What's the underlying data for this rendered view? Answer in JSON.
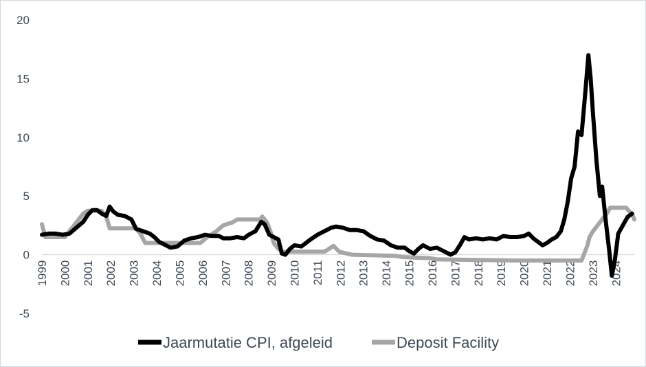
{
  "chart_data": {
    "type": "line",
    "title": "",
    "xlabel": "",
    "ylabel": "",
    "ylim": [
      -5,
      20
    ],
    "xlim": [
      1999.0,
      2024.8
    ],
    "y_ticks": [
      -5,
      0,
      5,
      10,
      15,
      20
    ],
    "x_ticks": [
      1999,
      2000,
      2001,
      2002,
      2003,
      2004,
      2005,
      2006,
      2007,
      2008,
      2009,
      2010,
      2011,
      2012,
      2013,
      2014,
      2015,
      2016,
      2017,
      2018,
      2019,
      2020,
      2021,
      2022,
      2023,
      2024
    ],
    "grid": false,
    "legend_position": "bottom",
    "series": [
      {
        "name": "Jaarmutatie CPI, afgeleid",
        "color": "#000000",
        "points": [
          [
            1999.0,
            1.7
          ],
          [
            1999.3,
            1.8
          ],
          [
            1999.6,
            1.8
          ],
          [
            1999.9,
            1.7
          ],
          [
            2000.2,
            1.8
          ],
          [
            2000.5,
            2.3
          ],
          [
            2000.8,
            2.8
          ],
          [
            2001.0,
            3.4
          ],
          [
            2001.2,
            3.8
          ],
          [
            2001.4,
            3.8
          ],
          [
            2001.6,
            3.5
          ],
          [
            2001.8,
            3.3
          ],
          [
            2001.95,
            4.1
          ],
          [
            2002.1,
            3.7
          ],
          [
            2002.3,
            3.4
          ],
          [
            2002.6,
            3.3
          ],
          [
            2002.9,
            3.0
          ],
          [
            2003.1,
            2.2
          ],
          [
            2003.4,
            2.0
          ],
          [
            2003.7,
            1.8
          ],
          [
            2003.9,
            1.5
          ],
          [
            2004.1,
            1.1
          ],
          [
            2004.3,
            0.9
          ],
          [
            2004.6,
            0.6
          ],
          [
            2004.9,
            0.7
          ],
          [
            2005.2,
            1.2
          ],
          [
            2005.5,
            1.4
          ],
          [
            2005.8,
            1.5
          ],
          [
            2006.1,
            1.7
          ],
          [
            2006.4,
            1.6
          ],
          [
            2006.7,
            1.6
          ],
          [
            2006.9,
            1.4
          ],
          [
            2007.2,
            1.4
          ],
          [
            2007.5,
            1.5
          ],
          [
            2007.8,
            1.4
          ],
          [
            2008.0,
            1.7
          ],
          [
            2008.3,
            2.0
          ],
          [
            2008.55,
            2.8
          ],
          [
            2008.7,
            2.6
          ],
          [
            2008.9,
            1.7
          ],
          [
            2009.1,
            1.5
          ],
          [
            2009.3,
            1.3
          ],
          [
            2009.45,
            0.1
          ],
          [
            2009.6,
            0.0
          ],
          [
            2009.8,
            0.5
          ],
          [
            2010.0,
            0.8
          ],
          [
            2010.3,
            0.7
          ],
          [
            2010.5,
            1.0
          ],
          [
            2010.7,
            1.3
          ],
          [
            2011.0,
            1.7
          ],
          [
            2011.3,
            2.0
          ],
          [
            2011.6,
            2.3
          ],
          [
            2011.8,
            2.4
          ],
          [
            2012.1,
            2.3
          ],
          [
            2012.4,
            2.1
          ],
          [
            2012.7,
            2.1
          ],
          [
            2013.0,
            2.0
          ],
          [
            2013.3,
            1.6
          ],
          [
            2013.6,
            1.3
          ],
          [
            2013.9,
            1.2
          ],
          [
            2014.2,
            0.8
          ],
          [
            2014.5,
            0.6
          ],
          [
            2014.8,
            0.6
          ],
          [
            2015.0,
            0.3
          ],
          [
            2015.2,
            0.1
          ],
          [
            2015.4,
            0.5
          ],
          [
            2015.6,
            0.8
          ],
          [
            2015.9,
            0.5
          ],
          [
            2016.2,
            0.6
          ],
          [
            2016.5,
            0.3
          ],
          [
            2016.8,
            0.0
          ],
          [
            2017.0,
            0.2
          ],
          [
            2017.2,
            0.8
          ],
          [
            2017.4,
            1.5
          ],
          [
            2017.6,
            1.3
          ],
          [
            2017.9,
            1.4
          ],
          [
            2018.2,
            1.3
          ],
          [
            2018.5,
            1.4
          ],
          [
            2018.8,
            1.3
          ],
          [
            2019.1,
            1.6
          ],
          [
            2019.4,
            1.5
          ],
          [
            2019.7,
            1.5
          ],
          [
            2020.0,
            1.6
          ],
          [
            2020.2,
            1.8
          ],
          [
            2020.4,
            1.4
          ],
          [
            2020.6,
            1.1
          ],
          [
            2020.8,
            0.8
          ],
          [
            2021.0,
            1.0
          ],
          [
            2021.2,
            1.3
          ],
          [
            2021.4,
            1.5
          ],
          [
            2021.6,
            2.0
          ],
          [
            2021.75,
            3.0
          ],
          [
            2021.9,
            4.5
          ],
          [
            2022.05,
            6.5
          ],
          [
            2022.2,
            7.5
          ],
          [
            2022.35,
            10.5
          ],
          [
            2022.5,
            10.2
          ],
          [
            2022.65,
            13.5
          ],
          [
            2022.8,
            17.0
          ],
          [
            2022.9,
            15.0
          ],
          [
            2023.0,
            12.0
          ],
          [
            2023.15,
            8.0
          ],
          [
            2023.3,
            5.0
          ],
          [
            2023.4,
            5.8
          ],
          [
            2023.55,
            3.0
          ],
          [
            2023.7,
            0.5
          ],
          [
            2023.82,
            -1.8
          ],
          [
            2023.95,
            -0.5
          ],
          [
            2024.1,
            1.8
          ],
          [
            2024.3,
            2.5
          ],
          [
            2024.5,
            3.2
          ],
          [
            2024.7,
            3.5
          ]
        ]
      },
      {
        "name": "Deposit Facility",
        "color": "#a6a6a6",
        "points": [
          [
            1999.0,
            2.6
          ],
          [
            1999.15,
            1.5
          ],
          [
            2000.0,
            1.5
          ],
          [
            2000.2,
            2.0
          ],
          [
            2000.4,
            2.5
          ],
          [
            2000.6,
            3.0
          ],
          [
            2000.8,
            3.5
          ],
          [
            2001.0,
            3.75
          ],
          [
            2001.6,
            3.75
          ],
          [
            2001.8,
            3.25
          ],
          [
            2001.95,
            2.25
          ],
          [
            2003.1,
            2.25
          ],
          [
            2003.3,
            1.75
          ],
          [
            2003.5,
            1.0
          ],
          [
            2005.9,
            1.0
          ],
          [
            2006.2,
            1.5
          ],
          [
            2006.6,
            2.0
          ],
          [
            2006.9,
            2.5
          ],
          [
            2007.3,
            2.75
          ],
          [
            2007.5,
            3.0
          ],
          [
            2008.5,
            3.0
          ],
          [
            2008.6,
            3.25
          ],
          [
            2008.8,
            2.75
          ],
          [
            2008.95,
            2.0
          ],
          [
            2009.1,
            1.0
          ],
          [
            2009.3,
            0.5
          ],
          [
            2009.5,
            0.25
          ],
          [
            2011.3,
            0.25
          ],
          [
            2011.5,
            0.5
          ],
          [
            2011.7,
            0.75
          ],
          [
            2011.95,
            0.25
          ],
          [
            2012.5,
            0.0
          ],
          [
            2014.4,
            -0.1
          ],
          [
            2014.7,
            -0.2
          ],
          [
            2015.9,
            -0.3
          ],
          [
            2016.2,
            -0.4
          ],
          [
            2019.7,
            -0.5
          ],
          [
            2022.5,
            -0.5
          ],
          [
            2022.6,
            0.0
          ],
          [
            2022.75,
            0.75
          ],
          [
            2022.85,
            1.5
          ],
          [
            2023.0,
            2.0
          ],
          [
            2023.2,
            2.5
          ],
          [
            2023.4,
            3.0
          ],
          [
            2023.6,
            3.5
          ],
          [
            2023.75,
            4.0
          ],
          [
            2024.45,
            4.0
          ],
          [
            2024.55,
            3.75
          ],
          [
            2024.7,
            3.5
          ],
          [
            2024.8,
            3.0
          ]
        ]
      }
    ]
  }
}
